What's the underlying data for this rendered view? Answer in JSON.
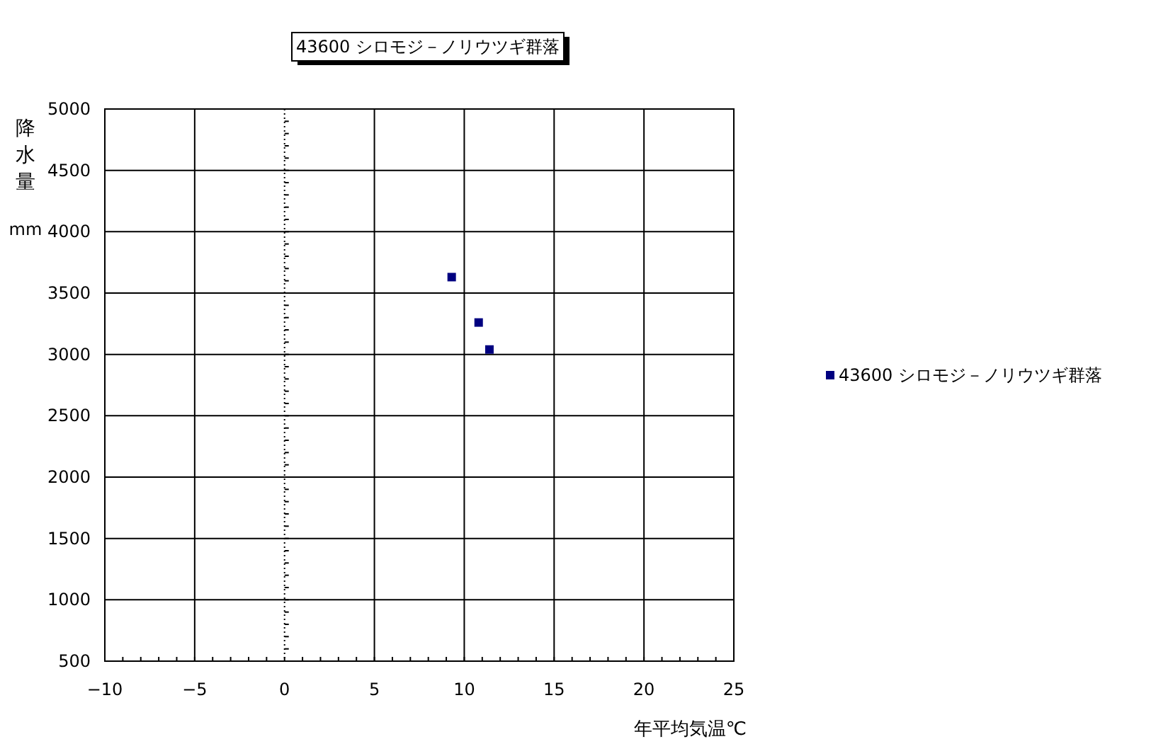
{
  "chart_data": {
    "type": "scatter",
    "title": "43600 シロモジ－ノリウツギ群落",
    "xlabel": "年平均気温℃",
    "ylabel": "降水量 mm",
    "series": [
      {
        "name": "43600 シロモジ－ノリウツギ群落",
        "color": "#000080",
        "x": [
          9.3,
          10.8,
          11.4
        ],
        "values": [
          3630,
          3260,
          3040
        ]
      }
    ],
    "xlim": [
      -10,
      25
    ],
    "xticks": [
      -10,
      -5,
      0,
      5,
      10,
      15,
      20,
      25
    ],
    "ylim": [
      500,
      5000
    ],
    "yticks": [
      500,
      1000,
      1500,
      2000,
      2500,
      3000,
      3500,
      4000,
      4500,
      5000
    ],
    "ref_lines": [
      {
        "axis": "x",
        "value": 0,
        "line_style": "dotted"
      }
    ],
    "grid": true,
    "legend": "right",
    "marker": "square"
  }
}
